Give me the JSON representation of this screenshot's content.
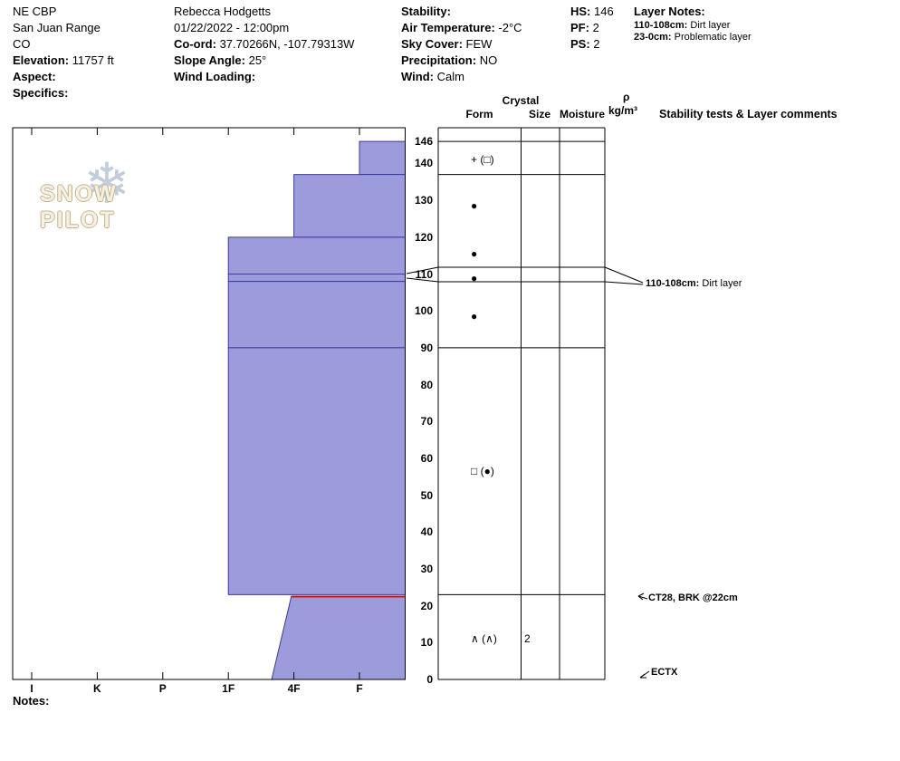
{
  "header": {
    "location": {
      "line1": "NE CBP",
      "line2": "San Juan Range",
      "line3": "CO",
      "elevation_label": "Elevation:",
      "elevation": "11757 ft",
      "aspect_label": "Aspect:",
      "specifics_label": "Specifics:"
    },
    "observer": {
      "name": "Rebecca Hodgetts",
      "datetime": "01/22/2022 - 12:00pm",
      "coord_label": "Co-ord:",
      "coord": "37.70266N, -107.79313W",
      "slope_angle_label": "Slope Angle:",
      "slope_angle": "25°",
      "wind_loading_label": "Wind Loading:"
    },
    "conditions": {
      "stability_label": "Stability:",
      "air_temp_label": "Air Temperature:",
      "air_temp": "-2°C",
      "sky_label": "Sky Cover:",
      "sky": "FEW",
      "precip_label": "Precipitation:",
      "precip": "NO",
      "wind_label": "Wind:",
      "wind": "Calm"
    },
    "summary": {
      "hs_label": "HS:",
      "hs": "146",
      "pf_label": "PF:",
      "pf": "2",
      "ps_label": "PS:",
      "ps": "2"
    },
    "layer_notes": {
      "title": "Layer Notes:",
      "notes": [
        {
          "range": "110-108cm:",
          "text": " Dirt layer"
        },
        {
          "range": "23-0cm:",
          "text": " Problematic layer"
        }
      ]
    }
  },
  "table": {
    "crystal_header": "Crystal",
    "col_form": "Form",
    "col_size": "Size",
    "col_moisture": "Moisture",
    "rho": "ρ",
    "rho_units": "kg/m³",
    "comments_header": "Stability tests & Layer comments"
  },
  "chart_data": {
    "type": "snow-profile-bar",
    "title": "Snow pit hardness profile",
    "hardness_axis": {
      "labels": [
        "I",
        "K",
        "P",
        "1F",
        "4F",
        "F"
      ]
    },
    "depth_axis": {
      "unit": "cm",
      "max": 146,
      "ticks": [
        146,
        140,
        130,
        120,
        110,
        100,
        90,
        80,
        70,
        60,
        50,
        40,
        30,
        20,
        10,
        0
      ]
    },
    "total_height_cm": 146,
    "layers": [
      {
        "top_cm": 146,
        "bottom_cm": 137,
        "hardness": "F"
      },
      {
        "top_cm": 137,
        "bottom_cm": 120,
        "hardness": "4F"
      },
      {
        "top_cm": 120,
        "bottom_cm": 110,
        "hardness": "1F"
      },
      {
        "top_cm": 110,
        "bottom_cm": 108,
        "hardness": "1F",
        "comment": "Dirt layer"
      },
      {
        "top_cm": 108,
        "bottom_cm": 90,
        "hardness": "1F"
      },
      {
        "top_cm": 90,
        "bottom_cm": 23,
        "hardness": "1F"
      },
      {
        "top_cm": 22.5,
        "bottom_cm": 0,
        "hardness": "4F",
        "hardness_index_top": 3.96,
        "hardness_index_bottom": 3.66,
        "flagged": true,
        "flag_depth_cm": 22,
        "comment": "Problematic layer"
      }
    ],
    "grain_rows": [
      {
        "depth_cm": 141,
        "form": "+ (□)"
      },
      {
        "depth_cm": 128.5,
        "form": "●"
      },
      {
        "depth_cm": 115.5,
        "form": "●"
      },
      {
        "depth_cm": 109,
        "form": "●"
      },
      {
        "depth_cm": 98.5,
        "form": "●"
      },
      {
        "depth_cm": 56.5,
        "form": "□ (●)"
      },
      {
        "depth_cm": 11,
        "form": "∧ (∧)",
        "size": "2"
      }
    ],
    "annotations": [
      {
        "depth_cm": 110,
        "bold": "110-108cm:",
        "text": " Dirt layer",
        "arrow": false
      },
      {
        "depth_cm": 23,
        "bold": "CT28, BRK @22cm",
        "text": "",
        "arrow": true
      },
      {
        "depth_cm": 0,
        "bold": "ECTX",
        "text": "",
        "arrow": true
      }
    ]
  },
  "footer": {
    "notes_label": "Notes:"
  },
  "logo": {
    "text": "SNOW PILOT",
    "snowflake_icon": "❄"
  },
  "colors": {
    "bar_fill": "#9c9cdc",
    "bar_stroke": "#3a3aa0",
    "flag_line": "#cc1111",
    "grid": "#000000"
  }
}
